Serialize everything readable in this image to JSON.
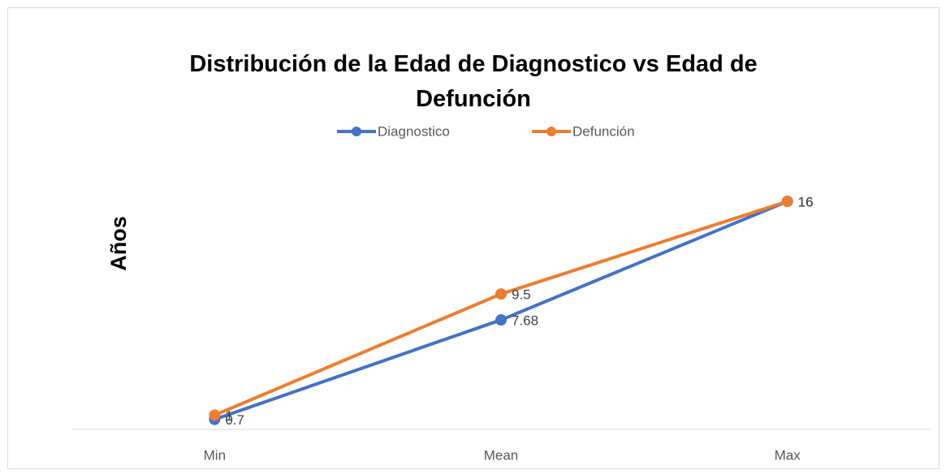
{
  "chart_data": {
    "type": "line",
    "title": "Distribución de la Edad de Diagnostico vs Edad de Defunción",
    "y_label": "Años",
    "categories": [
      "Min",
      "Mean",
      "Max"
    ],
    "series": [
      {
        "name": "Diagnostico",
        "color": "#4472c4",
        "values": [
          0.7,
          7.68,
          16
        ]
      },
      {
        "name": "Defunción",
        "color": "#ed7d31",
        "values": [
          1,
          9.5,
          16
        ]
      }
    ],
    "ylim": [
      0,
      18
    ],
    "legend": "top"
  }
}
